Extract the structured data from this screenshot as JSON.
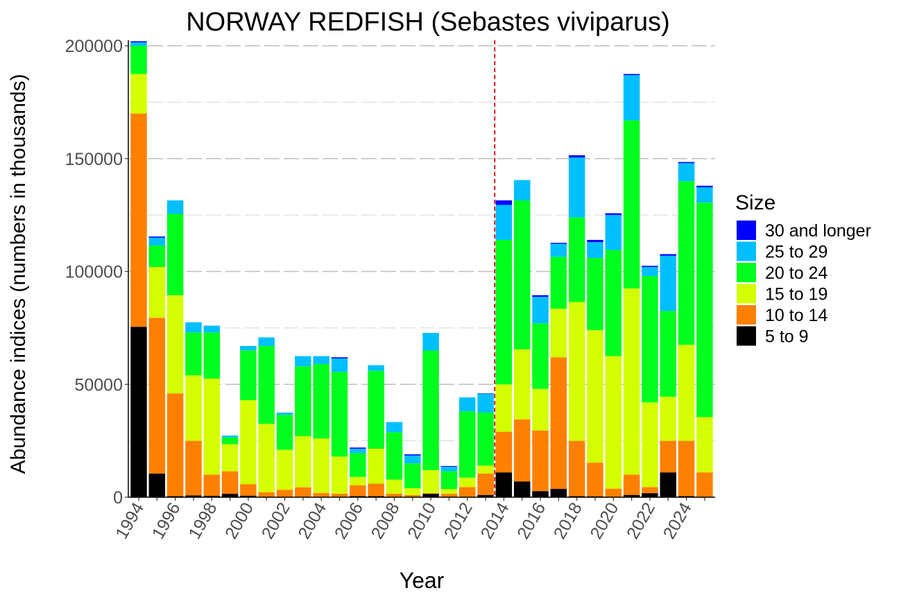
{
  "chart_data": {
    "type": "bar",
    "stacked": true,
    "title": "NORWAY REDFISH (Sebastes viviparus)",
    "xlabel": "Year",
    "ylabel": "Abundance indices (numbers in thousands)",
    "ylim": [
      0,
      200000
    ],
    "yticks": [
      0,
      50000,
      100000,
      150000,
      200000
    ],
    "ytick_labels": [
      "0",
      "50000",
      "100000",
      "150000",
      "200000"
    ],
    "grid": true,
    "reference_line": {
      "x": 2013.5,
      "style": "dashed",
      "color": "#d7191c"
    },
    "categories": [
      1994,
      1995,
      1996,
      1997,
      1998,
      1999,
      2000,
      2001,
      2002,
      2003,
      2004,
      2005,
      2006,
      2007,
      2008,
      2009,
      2010,
      2011,
      2012,
      2013,
      2014,
      2015,
      2016,
      2017,
      2018,
      2019,
      2020,
      2021,
      2022,
      2023,
      2024,
      2025
    ],
    "xtick_labels": [
      "1994",
      "1996",
      "1998",
      "2000",
      "2002",
      "2004",
      "2006",
      "2008",
      "2010",
      "2012",
      "2014",
      "2016",
      "2018",
      "2020",
      "2022",
      "2024"
    ],
    "legend": {
      "title": "Size",
      "placement": "right"
    },
    "series": [
      {
        "name": "5 to 9",
        "color": "#000000",
        "values": [
          75500,
          10500,
          500,
          800,
          600,
          1500,
          700,
          200,
          100,
          200,
          200,
          200,
          500,
          500,
          200,
          200,
          1500,
          200,
          200,
          1000,
          11000,
          7000,
          2700,
          3700,
          500,
          400,
          200,
          1000,
          1800,
          11000,
          500,
          200
        ]
      },
      {
        "name": "10 to 14",
        "color": "#ff8000",
        "values": [
          94500,
          69000,
          45500,
          24200,
          9400,
          10000,
          5100,
          2000,
          3200,
          4200,
          1700,
          1400,
          4800,
          5500,
          1400,
          800,
          300,
          1300,
          4300,
          9500,
          18000,
          27500,
          26800,
          58300,
          24500,
          14900,
          3600,
          9000,
          2700,
          14000,
          24500,
          10800
        ]
      },
      {
        "name": "15 to 19",
        "color": "#d4ff00",
        "values": [
          17500,
          22500,
          43500,
          29000,
          42500,
          12000,
          37200,
          30300,
          17700,
          22600,
          24100,
          16400,
          3700,
          15500,
          6200,
          3000,
          10200,
          2100,
          4200,
          3500,
          21000,
          31000,
          18500,
          21500,
          61500,
          58700,
          58700,
          82500,
          37500,
          19500,
          42500,
          24500
        ]
      },
      {
        "name": "20 to 24",
        "color": "#00ff1e",
        "values": [
          12500,
          9500,
          36000,
          19000,
          20500,
          3000,
          22000,
          34500,
          15500,
          31000,
          33000,
          37500,
          10500,
          34500,
          21000,
          11000,
          53000,
          7900,
          29300,
          23500,
          64000,
          66000,
          29000,
          23000,
          37500,
          32000,
          47000,
          74500,
          56000,
          38000,
          72500,
          95000
        ]
      },
      {
        "name": "25 to 29",
        "color": "#00bfff",
        "values": [
          1500,
          3500,
          6000,
          4500,
          3000,
          800,
          2000,
          3800,
          1000,
          4500,
          3500,
          6000,
          2000,
          2500,
          4500,
          3500,
          7800,
          2000,
          6200,
          8300,
          15500,
          9000,
          11800,
          5800,
          26500,
          7000,
          15500,
          20000,
          4000,
          24500,
          8000,
          6800
        ]
      },
      {
        "name": "30 and longer",
        "color": "#0000ff",
        "values": [
          500,
          500,
          0,
          0,
          0,
          0,
          0,
          0,
          0,
          0,
          0,
          500,
          500,
          0,
          0,
          500,
          0,
          300,
          0,
          200,
          2000,
          0,
          700,
          400,
          1000,
          1000,
          800,
          500,
          500,
          700,
          500,
          700
        ]
      }
    ]
  }
}
